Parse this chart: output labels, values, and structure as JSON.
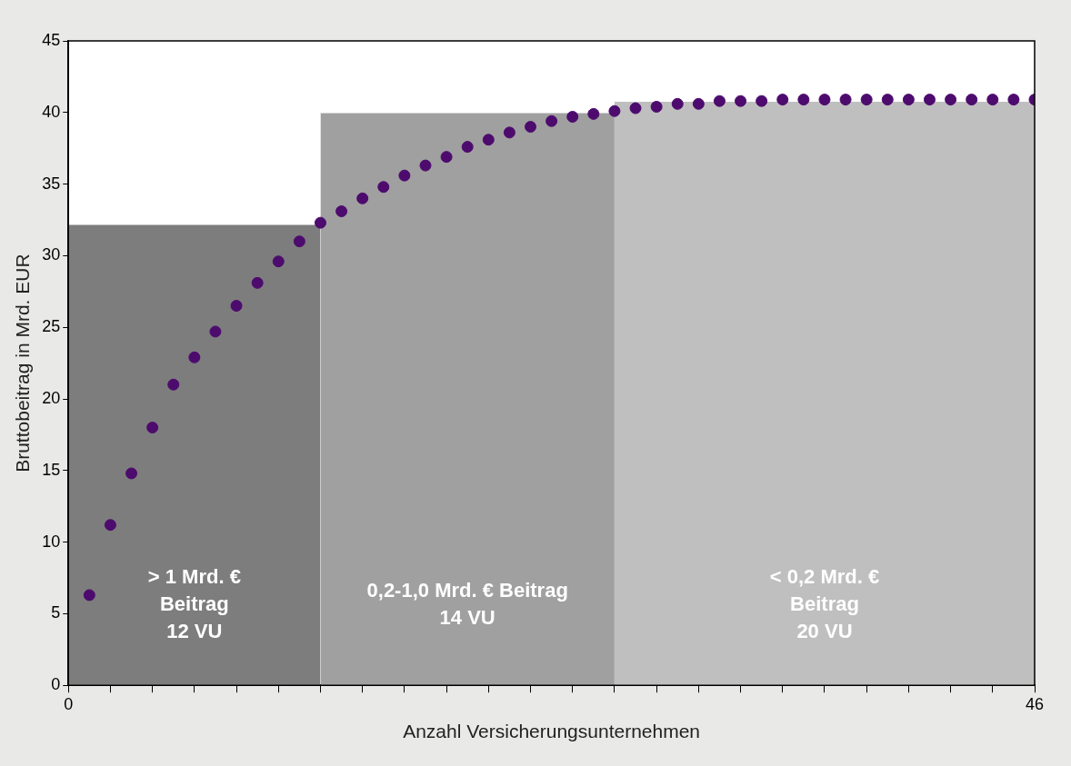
{
  "chart_data": {
    "type": "scatter",
    "xlabel": "Anzahl Versicherungsunternehmen",
    "ylabel": "Bruttobeitrag in Mrd. EUR",
    "xlim": [
      0,
      46
    ],
    "xticks": [
      0,
      {
        "value": 2,
        "label": null
      },
      {
        "value": 4,
        "label": null
      },
      {
        "value": 6,
        "label": null
      },
      {
        "value": 8,
        "label": null
      },
      {
        "value": 10,
        "label": null
      },
      {
        "value": 12,
        "label": null
      },
      {
        "value": 14,
        "label": null
      },
      {
        "value": 16,
        "label": null
      },
      {
        "value": 18,
        "label": null
      },
      {
        "value": 20,
        "label": null
      },
      {
        "value": 22,
        "label": null
      },
      {
        "value": 24,
        "label": null
      },
      {
        "value": 26,
        "label": null
      },
      {
        "value": 28,
        "label": null
      },
      {
        "value": 30,
        "label": null
      },
      {
        "value": 32,
        "label": null
      },
      {
        "value": 34,
        "label": null
      },
      {
        "value": 36,
        "label": null
      },
      {
        "value": 38,
        "label": null
      },
      {
        "value": 40,
        "label": null
      },
      {
        "value": 42,
        "label": null
      },
      {
        "value": 44,
        "label": null
      },
      46
    ],
    "ylim": [
      0,
      45
    ],
    "yticks": [
      0,
      5,
      10,
      15,
      20,
      25,
      30,
      35,
      40,
      45
    ],
    "marker": "circle",
    "series": [
      {
        "type": "area",
        "marker": "none",
        "color": "#7d7d7d",
        "x": [
          0,
          12
        ],
        "values": [
          32.2,
          32.2
        ]
      },
      {
        "type": "area",
        "marker": "none",
        "color": "#a0a0a0",
        "x": [
          12,
          26
        ],
        "values": [
          40,
          40
        ]
      },
      {
        "type": "area",
        "marker": "none",
        "color": "#bfbfbf",
        "x": [
          26,
          46
        ],
        "values": [
          40.8,
          40.8
        ]
      },
      {
        "color": "#4d0b6e",
        "x": [
          1,
          2,
          3,
          4,
          5,
          6,
          7,
          8,
          9,
          10,
          11,
          12,
          13,
          14,
          15,
          16,
          17,
          18,
          19,
          20,
          21,
          22,
          23,
          24,
          25,
          26,
          27,
          28,
          29,
          30,
          31,
          32,
          33,
          34,
          35,
          36,
          37,
          38,
          39,
          40,
          41,
          42,
          43,
          44,
          45,
          46
        ],
        "values": [
          6.3,
          11.2,
          14.8,
          18,
          21,
          22.9,
          24.7,
          26.5,
          28.1,
          29.6,
          31,
          32.3,
          33.1,
          34,
          34.8,
          35.6,
          36.3,
          36.9,
          37.6,
          38.1,
          38.6,
          39,
          39.4,
          39.7,
          39.9,
          40.1,
          40.3,
          40.4,
          40.6,
          40.6,
          40.8,
          40.8,
          40.8,
          40.9,
          40.9,
          40.9,
          40.9,
          40.9,
          40.9,
          40.9,
          40.9,
          40.9,
          40.9,
          40.9,
          40.9,
          40.9
        ]
      }
    ],
    "annotations": [
      "> 1 Mrd. €\nBeitrag\n12 VU",
      "0,2-1,0 Mrd. € Beitrag\n14 VU",
      "< 0,2 Mrd. €\nBeitrag\n20 VU"
    ]
  }
}
